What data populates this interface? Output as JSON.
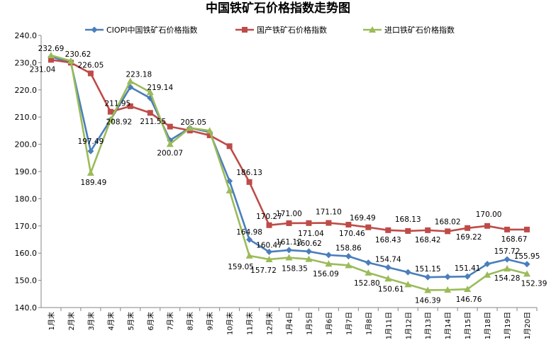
{
  "chart_data": {
    "type": "line",
    "title": "中国铁矿石价格指数走势图",
    "xlabel": "",
    "ylabel": "",
    "ylim": [
      140,
      240
    ],
    "yticks": [
      "240.0",
      "230.0",
      "220.0",
      "210.0",
      "200.0",
      "190.0",
      "180.0",
      "170.0",
      "160.0",
      "150.0",
      "140.0"
    ],
    "categories": [
      "1月末",
      "2月末",
      "3月末",
      "4月末",
      "5月末",
      "6月末",
      "7月末",
      "8月末",
      "9月末",
      "10月末",
      "11月末",
      "12月末",
      "1月4日",
      "1月5日",
      "1月6日",
      "1月7日",
      "1月8日",
      "1月11日",
      "1月12日",
      "1月13日",
      "1月14日",
      "1月15日",
      "1月18日",
      "1月19日",
      "1月20日"
    ],
    "legend_position": "top",
    "grid": false,
    "series": [
      {
        "name": "CIOPI中国铁矿石价格指数",
        "color": "#4A7EBB",
        "marker": "diamond",
        "values": [
          232.2,
          230.0,
          197.49,
          209.0,
          221.0,
          217.0,
          201.5,
          206.0,
          204.5,
          186.5,
          164.98,
          160.47,
          161.12,
          160.62,
          159.3,
          158.86,
          156.5,
          154.74,
          153.0,
          151.15,
          151.3,
          151.41,
          156.0,
          157.72,
          155.95
        ],
        "labels": [
          "",
          "",
          "197.49",
          "",
          "",
          "",
          "",
          "",
          "",
          "",
          "164.98",
          "160.47",
          "161.12",
          "160.62",
          "",
          "158.86",
          "",
          "154.74",
          "",
          "151.15",
          "",
          "151.41",
          "",
          "157.72",
          "155.95"
        ]
      },
      {
        "name": "国产铁矿石价格指数",
        "color": "#BE4B48",
        "marker": "square",
        "values": [
          231.04,
          230.0,
          226.05,
          211.95,
          214.0,
          211.55,
          206.5,
          205.05,
          203.3,
          199.3,
          186.13,
          170.27,
          171.0,
          171.04,
          171.1,
          170.46,
          169.49,
          168.43,
          168.13,
          168.42,
          168.02,
          169.22,
          170.0,
          168.67,
          168.67
        ],
        "labels": [
          "231.04",
          "",
          "226.05",
          "211.95",
          "",
          "211.55",
          "",
          "205.05",
          "",
          "",
          "186.13",
          "170.27",
          "171.00",
          "171.04",
          "171.10",
          "170.46",
          "169.49",
          "168.43",
          "168.13",
          "168.42",
          "168.02",
          "169.22",
          "170.00",
          "168.67",
          ""
        ]
      },
      {
        "name": "进口铁矿石价格指数",
        "color": "#9BBB59",
        "marker": "triangle",
        "values": [
          232.69,
          230.62,
          189.49,
          208.92,
          223.18,
          219.14,
          200.07,
          206.0,
          205.0,
          183.0,
          159.05,
          157.72,
          158.35,
          157.8,
          156.09,
          155.5,
          152.8,
          150.61,
          148.5,
          146.39,
          146.5,
          146.76,
          152.0,
          154.28,
          152.39
        ],
        "labels": [
          "232.69",
          "230.62",
          "189.49",
          "208.92",
          "223.18",
          "219.14",
          "200.07",
          "",
          "",
          "",
          "159.05",
          "157.72",
          "158.35",
          "",
          "156.09",
          "",
          "152.80",
          "150.61",
          "",
          "146.39",
          "",
          "146.76",
          "",
          "154.28",
          "152.39"
        ]
      }
    ]
  }
}
